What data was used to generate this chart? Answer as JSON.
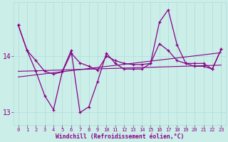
{
  "x": [
    0,
    1,
    2,
    3,
    4,
    5,
    6,
    7,
    8,
    9,
    10,
    11,
    12,
    13,
    14,
    15,
    16,
    17,
    18,
    19,
    20,
    21,
    22,
    23
  ],
  "y_volatile": [
    14.55,
    14.1,
    13.73,
    13.3,
    13.05,
    13.73,
    14.1,
    13.0,
    13.1,
    13.55,
    14.05,
    13.87,
    13.77,
    13.77,
    13.77,
    13.87,
    14.6,
    14.82,
    14.2,
    13.87,
    13.87,
    13.87,
    13.77,
    14.12
  ],
  "y_upper": [
    14.55,
    14.1,
    13.92,
    13.73,
    13.68,
    13.72,
    14.05,
    13.88,
    13.82,
    13.75,
    14.0,
    13.92,
    13.87,
    13.85,
    13.85,
    13.87,
    14.22,
    14.1,
    13.92,
    13.87,
    13.82,
    13.82,
    13.77,
    14.12
  ],
  "trend1": {
    "x": [
      0,
      23
    ],
    "y": [
      13.73,
      13.84
    ]
  },
  "trend2": {
    "x": [
      0,
      23
    ],
    "y": [
      13.63,
      14.06
    ]
  },
  "ylim": [
    12.78,
    14.95
  ],
  "yticks": [
    13,
    14
  ],
  "xticks": [
    0,
    1,
    2,
    3,
    4,
    5,
    6,
    7,
    8,
    9,
    10,
    11,
    12,
    13,
    14,
    15,
    16,
    17,
    18,
    19,
    20,
    21,
    22,
    23
  ],
  "xlabel": "Windchill (Refroidissement éolien,°C)",
  "bg_color": "#cceee8",
  "line_color": "#880088",
  "grid_color": "#aaddda",
  "tick_color": "#880088"
}
